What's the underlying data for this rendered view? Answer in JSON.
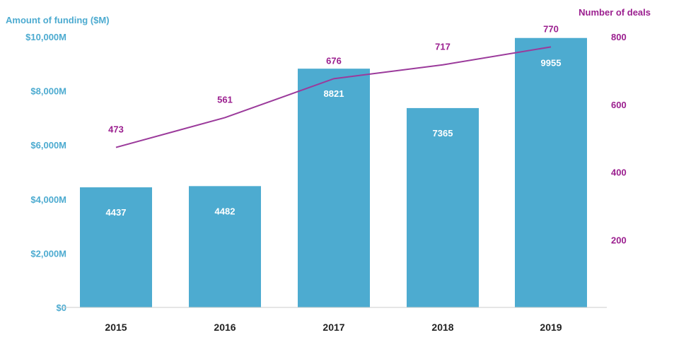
{
  "chart_data": {
    "type": "bar",
    "categories": [
      "2015",
      "2016",
      "2017",
      "2018",
      "2019"
    ],
    "series": [
      {
        "type": "bar",
        "axis": "left",
        "values": [
          4437,
          4482,
          8821,
          7365,
          9955
        ]
      },
      {
        "type": "line",
        "axis": "right",
        "values": [
          473,
          561,
          676,
          717,
          770
        ]
      }
    ],
    "y_left": {
      "label": "Amount of funding ($M)",
      "ticks": [
        0,
        2000,
        4000,
        6000,
        8000,
        10000
      ],
      "tick_labels": [
        "$0",
        "$2,000M",
        "$4,000M",
        "$6,000M",
        "$8,000M",
        "$10,000M"
      ],
      "ylim": [
        0,
        10000
      ]
    },
    "y_right": {
      "label": "Number of deals",
      "ticks": [
        200,
        400,
        600,
        800
      ],
      "tick_labels": [
        "200",
        "400",
        "600",
        "800"
      ],
      "ylim": [
        0,
        800
      ]
    },
    "colors": {
      "bar": "#4dabd0",
      "line": "#9b3a9b",
      "left_axis_text": "#4dabd0",
      "right_axis_text": "#9b1f8f",
      "bar_label": "#ffffff",
      "category_text": "#222222",
      "axis_line": "#cccccc"
    },
    "grid": false
  }
}
